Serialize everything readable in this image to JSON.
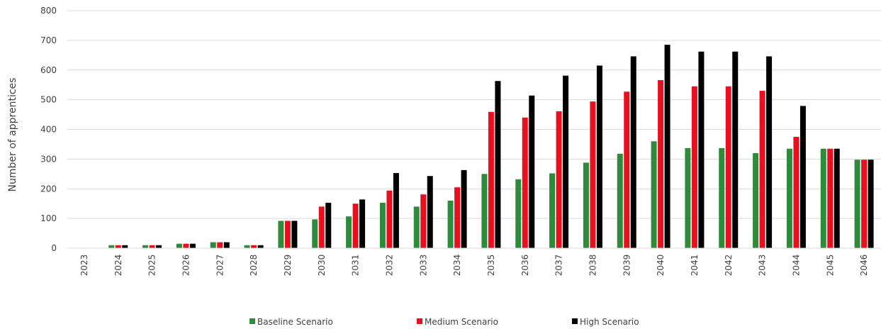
{
  "chart_data": {
    "type": "bar",
    "xlabel": "",
    "ylabel": "Number of apprentices",
    "ylim": [
      0,
      800
    ],
    "yticks": [
      "0",
      "100",
      "200",
      "300",
      "400",
      "500",
      "600",
      "700",
      "800"
    ],
    "grid": true,
    "legend_position": "bottom",
    "categories": [
      "2023",
      "2024",
      "2025",
      "2026",
      "2027",
      "2028",
      "2029",
      "2030",
      "2031",
      "2032",
      "2033",
      "2034",
      "2035",
      "2036",
      "2037",
      "2038",
      "2039",
      "2040",
      "2041",
      "2042",
      "2043",
      "2044",
      "2045",
      "2046"
    ],
    "series": [
      {
        "name": "Baseline Scenario",
        "color": "#2e8b3a",
        "values": [
          0,
          10,
          10,
          15,
          20,
          10,
          92,
          97,
          107,
          153,
          140,
          160,
          250,
          232,
          252,
          288,
          318,
          360,
          337,
          337,
          320,
          335,
          335,
          298
        ]
      },
      {
        "name": "Medium Scenario",
        "color": "#e8101e",
        "values": [
          0,
          10,
          10,
          15,
          20,
          10,
          92,
          140,
          150,
          194,
          181,
          205,
          459,
          440,
          461,
          494,
          527,
          566,
          545,
          545,
          530,
          375,
          335,
          298
        ]
      },
      {
        "name": "High Scenario",
        "color": "#000000",
        "values": [
          0,
          10,
          10,
          15,
          20,
          10,
          92,
          153,
          164,
          253,
          243,
          263,
          563,
          514,
          581,
          615,
          646,
          685,
          662,
          662,
          646,
          479,
          335,
          298
        ]
      }
    ]
  }
}
